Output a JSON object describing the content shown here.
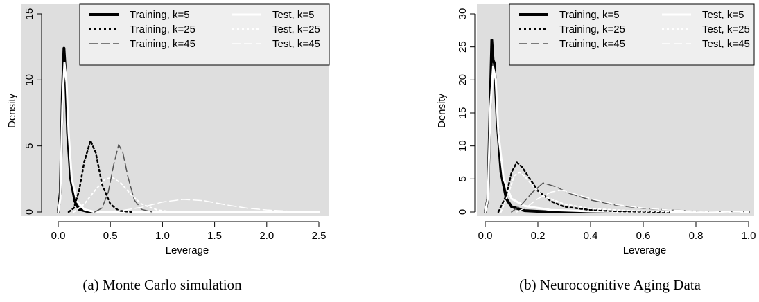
{
  "chart_data": [
    {
      "type": "line",
      "caption": "(a) Monte Carlo simulation",
      "xlabel": "Leverage",
      "ylabel": "Density",
      "xlim": [
        0,
        2.5
      ],
      "ylim": [
        0,
        15
      ],
      "xticks": [
        "0.0",
        "0.5",
        "1.0",
        "1.5",
        "2.0",
        "2.5"
      ],
      "xtick_values": [
        0,
        0.5,
        1,
        1.5,
        2,
        2.5
      ],
      "yticks": [
        "0",
        "5",
        "10",
        "15"
      ],
      "ytick_values": [
        0,
        5,
        10,
        15
      ],
      "grid": false,
      "background": "#dedede",
      "legend_position": "top-right",
      "legend": [
        [
          "Training, k=5",
          "Test, k=5"
        ],
        [
          "Training, k=25",
          "Test, k=25"
        ],
        [
          "Training, k=45",
          "Test, k=45"
        ]
      ],
      "series": [
        {
          "name": "Training, k=5",
          "color": "#000000",
          "dash": "solid",
          "width": 4,
          "points": [
            [
              0.0,
              0
            ],
            [
              0.02,
              1.5
            ],
            [
              0.04,
              9.0
            ],
            [
              0.055,
              12.4
            ],
            [
              0.07,
              10.5
            ],
            [
              0.09,
              6.0
            ],
            [
              0.12,
              2.5
            ],
            [
              0.16,
              0.8
            ],
            [
              0.2,
              0.2
            ],
            [
              0.3,
              0
            ],
            [
              2.5,
              0
            ]
          ]
        },
        {
          "name": "Test, k=5",
          "color": "#ffffff",
          "dash": "solid",
          "width": 3,
          "points": [
            [
              0.0,
              0
            ],
            [
              0.02,
              1.0
            ],
            [
              0.04,
              8.0
            ],
            [
              0.06,
              11.3
            ],
            [
              0.08,
              9.8
            ],
            [
              0.1,
              6.0
            ],
            [
              0.13,
              2.5
            ],
            [
              0.18,
              0.8
            ],
            [
              0.25,
              0.2
            ],
            [
              0.35,
              0
            ],
            [
              2.5,
              0
            ]
          ]
        },
        {
          "name": "Training, k=25",
          "color": "#000000",
          "dash": "dotted",
          "width": 2.5,
          "points": [
            [
              0.1,
              0
            ],
            [
              0.15,
              0.3
            ],
            [
              0.2,
              1.6
            ],
            [
              0.25,
              3.8
            ],
            [
              0.31,
              5.4
            ],
            [
              0.36,
              4.5
            ],
            [
              0.42,
              2.1
            ],
            [
              0.5,
              0.6
            ],
            [
              0.58,
              0.1
            ],
            [
              0.7,
              0
            ]
          ]
        },
        {
          "name": "Test, k=25",
          "color": "#ffffff",
          "dash": "dotted",
          "width": 2,
          "points": [
            [
              0.15,
              0
            ],
            [
              0.25,
              0.6
            ],
            [
              0.35,
              1.6
            ],
            [
              0.45,
              2.5
            ],
            [
              0.52,
              2.6
            ],
            [
              0.6,
              2.2
            ],
            [
              0.7,
              1.3
            ],
            [
              0.8,
              0.6
            ],
            [
              0.95,
              0.15
            ],
            [
              1.1,
              0
            ]
          ]
        },
        {
          "name": "Training, k=45",
          "color": "#555555",
          "dash": "longdash",
          "width": 1.5,
          "points": [
            [
              0.35,
              0
            ],
            [
              0.42,
              0.3
            ],
            [
              0.48,
              1.5
            ],
            [
              0.53,
              3.5
            ],
            [
              0.58,
              5.1
            ],
            [
              0.62,
              4.5
            ],
            [
              0.67,
              2.6
            ],
            [
              0.73,
              0.9
            ],
            [
              0.8,
              0.2
            ],
            [
              0.9,
              0
            ]
          ]
        },
        {
          "name": "Test, k=45",
          "color": "#ffffff",
          "dash": "longdash",
          "width": 1.5,
          "points": [
            [
              0.4,
              0
            ],
            [
              0.6,
              0.1
            ],
            [
              0.8,
              0.35
            ],
            [
              1.0,
              0.75
            ],
            [
              1.2,
              0.95
            ],
            [
              1.4,
              0.85
            ],
            [
              1.6,
              0.55
            ],
            [
              1.8,
              0.3
            ],
            [
              2.0,
              0.15
            ],
            [
              2.2,
              0.07
            ],
            [
              2.5,
              0.02
            ]
          ]
        }
      ]
    },
    {
      "type": "line",
      "caption": "(b) Neurocognitive Aging Data",
      "xlabel": "Leverage",
      "ylabel": "Density",
      "xlim": [
        0,
        1
      ],
      "ylim": [
        0,
        30
      ],
      "xticks": [
        "0.0",
        "0.2",
        "0.4",
        "0.6",
        "0.8",
        "1.0"
      ],
      "xtick_values": [
        0,
        0.2,
        0.4,
        0.6,
        0.8,
        1.0
      ],
      "yticks": [
        "0",
        "5",
        "10",
        "15",
        "20",
        "25",
        "30"
      ],
      "ytick_values": [
        0,
        5,
        10,
        15,
        20,
        25,
        30
      ],
      "grid": false,
      "background": "#dedede",
      "legend_position": "top-right",
      "legend": [
        [
          "Training, k=5",
          "Test, k=5"
        ],
        [
          "Training, k=25",
          "Test, k=25"
        ],
        [
          "Training, k=45",
          "Test, k=45"
        ]
      ],
      "series": [
        {
          "name": "Training, k=5",
          "color": "#000000",
          "dash": "solid",
          "width": 4,
          "points": [
            [
              0.0,
              0
            ],
            [
              0.01,
              2
            ],
            [
              0.02,
              18
            ],
            [
              0.025,
              26
            ],
            [
              0.03,
              23
            ],
            [
              0.035,
              22.5
            ],
            [
              0.045,
              14
            ],
            [
              0.06,
              6
            ],
            [
              0.08,
              2
            ],
            [
              0.1,
              0.8
            ],
            [
              0.15,
              0.2
            ],
            [
              0.25,
              0
            ],
            [
              1.0,
              0
            ]
          ]
        },
        {
          "name": "Test, k=5",
          "color": "#ffffff",
          "dash": "solid",
          "width": 3,
          "points": [
            [
              0.0,
              0
            ],
            [
              0.01,
              2
            ],
            [
              0.02,
              16
            ],
            [
              0.03,
              22
            ],
            [
              0.04,
              20
            ],
            [
              0.05,
              12
            ],
            [
              0.07,
              5
            ],
            [
              0.1,
              2
            ],
            [
              0.15,
              0.9
            ],
            [
              0.25,
              0.3
            ],
            [
              0.4,
              0.1
            ],
            [
              0.6,
              0
            ],
            [
              1.0,
              0
            ]
          ]
        },
        {
          "name": "Training, k=25",
          "color": "#000000",
          "dash": "dotted",
          "width": 2.5,
          "points": [
            [
              0.05,
              0
            ],
            [
              0.08,
              2.5
            ],
            [
              0.1,
              6
            ],
            [
              0.12,
              7.5
            ],
            [
              0.14,
              6.8
            ],
            [
              0.17,
              5
            ],
            [
              0.2,
              3.2
            ],
            [
              0.25,
              1.6
            ],
            [
              0.3,
              0.8
            ],
            [
              0.4,
              0.3
            ],
            [
              0.5,
              0.1
            ],
            [
              0.7,
              0
            ]
          ]
        },
        {
          "name": "Test, k=25",
          "color": "#ffffff",
          "dash": "dotted",
          "width": 2,
          "points": [
            [
              0.06,
              0
            ],
            [
              0.09,
              3
            ],
            [
              0.11,
              5.5
            ],
            [
              0.13,
              6
            ],
            [
              0.15,
              5.4
            ],
            [
              0.18,
              4
            ],
            [
              0.22,
              2.4
            ],
            [
              0.3,
              1.2
            ],
            [
              0.4,
              0.5
            ],
            [
              0.55,
              0.2
            ],
            [
              0.7,
              0.05
            ],
            [
              0.9,
              0
            ]
          ]
        },
        {
          "name": "Training, k=45",
          "color": "#555555",
          "dash": "longdash",
          "width": 1.5,
          "points": [
            [
              0.1,
              0
            ],
            [
              0.14,
              1.2
            ],
            [
              0.18,
              3
            ],
            [
              0.22,
              4.4
            ],
            [
              0.27,
              3.8
            ],
            [
              0.32,
              2.8
            ],
            [
              0.4,
              1.8
            ],
            [
              0.5,
              1.0
            ],
            [
              0.6,
              0.55
            ],
            [
              0.7,
              0.3
            ],
            [
              0.8,
              0.15
            ],
            [
              0.9,
              0.07
            ],
            [
              1.0,
              0.03
            ]
          ]
        },
        {
          "name": "Test, k=45",
          "color": "#ffffff",
          "dash": "longdash",
          "width": 1.5,
          "points": [
            [
              0.12,
              0
            ],
            [
              0.16,
              0.8
            ],
            [
              0.2,
              2
            ],
            [
              0.25,
              3
            ],
            [
              0.29,
              3.3
            ],
            [
              0.35,
              2.6
            ],
            [
              0.42,
              1.8
            ],
            [
              0.5,
              1.1
            ],
            [
              0.6,
              0.6
            ],
            [
              0.7,
              0.3
            ],
            [
              0.8,
              0.15
            ],
            [
              0.9,
              0.06
            ],
            [
              1.0,
              0.02
            ]
          ]
        }
      ]
    }
  ]
}
